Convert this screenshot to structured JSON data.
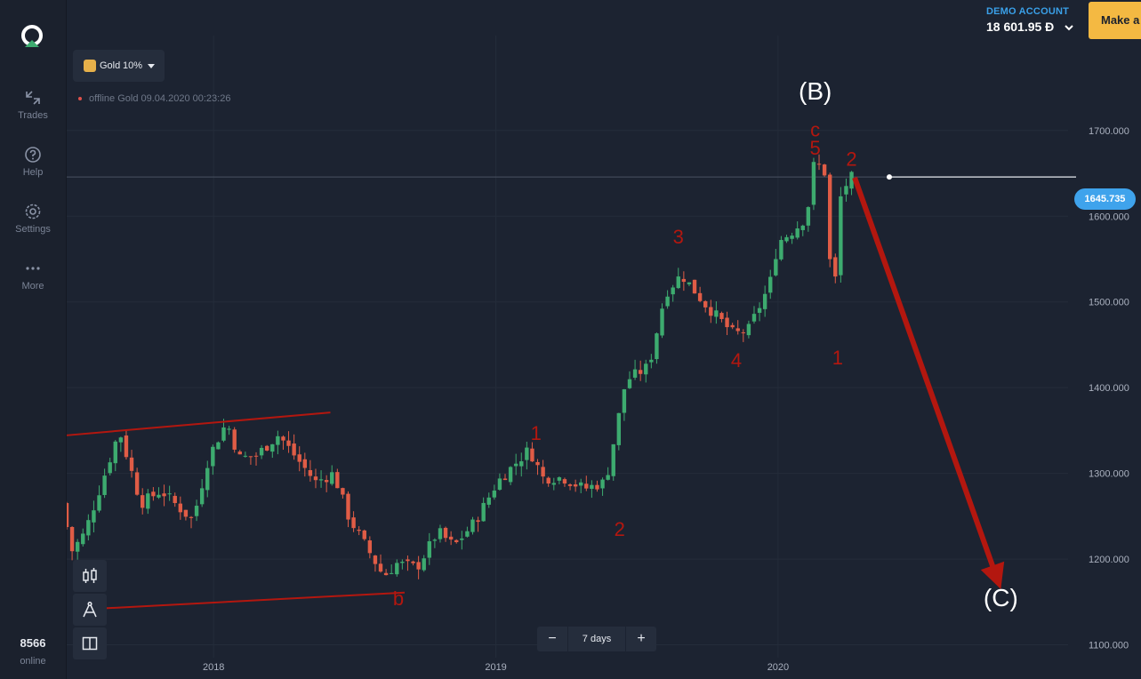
{
  "sidebar": {
    "items": [
      {
        "label": "Trades",
        "icon": "trades-icon"
      },
      {
        "label": "Help",
        "icon": "help-icon"
      },
      {
        "label": "Settings",
        "icon": "settings-icon"
      },
      {
        "label": "More",
        "icon": "more-icon"
      }
    ],
    "online_count": "8566",
    "online_label": "online"
  },
  "account": {
    "type_label": "DEMO ACCOUNT",
    "balance": "18 601.95 Đ",
    "make_button": "Make a"
  },
  "asset": {
    "name": "Gold",
    "percent": "10%",
    "status": "offline Gold  09.04.2020 00:23:26"
  },
  "period": {
    "label": "7 days",
    "minus": "−",
    "plus": "+"
  },
  "current_price": "1645.735",
  "colors": {
    "up": "#3dab6f",
    "down": "#e05c46",
    "annotation": "#b3170f",
    "accent": "#3fa3ec",
    "make_button": "#f4b942"
  },
  "annotations": [
    {
      "text": "(B)",
      "color": "#ffffff",
      "date": "2020-02-18",
      "price": 1736
    },
    {
      "text": "c",
      "color": "#b3170f",
      "date": "2020-02-18",
      "price": 1693
    },
    {
      "text": "5",
      "color": "#b3170f",
      "date": "2020-02-18",
      "price": 1672
    },
    {
      "text": "2",
      "color": "#b3170f",
      "date": "2020-04-05",
      "price": 1659
    },
    {
      "text": "3",
      "color": "#b3170f",
      "date": "2019-08-25",
      "price": 1568
    },
    {
      "text": "4",
      "color": "#b3170f",
      "date": "2019-11-08",
      "price": 1424
    },
    {
      "text": "1",
      "color": "#b3170f",
      "date": "2020-03-18",
      "price": 1427
    },
    {
      "text": "1",
      "color": "#b3170f",
      "date": "2019-02-22",
      "price": 1339
    },
    {
      "text": "2",
      "color": "#b3170f",
      "date": "2019-06-10",
      "price": 1227
    },
    {
      "text": "b",
      "color": "#b3170f",
      "date": "2018-08-28",
      "price": 1146
    },
    {
      "text": "(C)",
      "color": "#ffffff",
      "date": "2020-10-15",
      "price": 1145
    }
  ],
  "chart_data": {
    "type": "candlestick",
    "instrument": "Gold",
    "x_ticks": [
      "2018",
      "2019",
      "2020"
    ],
    "y_ticks": [
      "1100.000",
      "1200.000",
      "1300.000",
      "1400.000",
      "1500.000",
      "1600.000",
      "1700.000"
    ],
    "ylim": [
      1085,
      1790
    ],
    "xlim": [
      "2017-06-25",
      "2021-01-10"
    ],
    "last_price": 1645.735,
    "anchors": [
      [
        "2017-06-25",
        1265
      ],
      [
        "2017-07-09",
        1210
      ],
      [
        "2017-07-25",
        1230
      ],
      [
        "2017-08-15",
        1285
      ],
      [
        "2017-09-08",
        1350
      ],
      [
        "2017-10-06",
        1265
      ],
      [
        "2017-11-01",
        1280
      ],
      [
        "2017-12-12",
        1245
      ],
      [
        "2018-01-02",
        1320
      ],
      [
        "2018-01-25",
        1360
      ],
      [
        "2018-02-10",
        1318
      ],
      [
        "2018-03-03",
        1320
      ],
      [
        "2018-04-02",
        1345
      ],
      [
        "2018-04-25",
        1318
      ],
      [
        "2018-05-20",
        1290
      ],
      [
        "2018-06-12",
        1300
      ],
      [
        "2018-07-02",
        1248
      ],
      [
        "2018-08-16",
        1180
      ],
      [
        "2018-09-02",
        1195
      ],
      [
        "2018-09-28",
        1190
      ],
      [
        "2018-10-25",
        1232
      ],
      [
        "2018-11-15",
        1215
      ],
      [
        "2018-12-13",
        1245
      ],
      [
        "2019-01-10",
        1290
      ],
      [
        "2019-02-20",
        1328
      ],
      [
        "2019-03-10",
        1295
      ],
      [
        "2019-04-05",
        1295
      ],
      [
        "2019-05-02",
        1282
      ],
      [
        "2019-05-30",
        1290
      ],
      [
        "2019-06-25",
        1408
      ],
      [
        "2019-07-25",
        1425
      ],
      [
        "2019-08-15",
        1510
      ],
      [
        "2019-09-05",
        1532
      ],
      [
        "2019-10-05",
        1498
      ],
      [
        "2019-11-12",
        1462
      ],
      [
        "2019-12-01",
        1468
      ],
      [
        "2019-12-28",
        1520
      ],
      [
        "2020-01-08",
        1570
      ],
      [
        "2020-01-30",
        1585
      ],
      [
        "2020-02-14",
        1600
      ],
      [
        "2020-02-24",
        1665
      ],
      [
        "2020-03-09",
        1650
      ],
      [
        "2020-03-19",
        1480
      ],
      [
        "2020-03-28",
        1620
      ],
      [
        "2020-04-09",
        1645
      ]
    ],
    "trend_lines": [
      {
        "from": [
          "2017-06-20",
          1344
        ],
        "to": [
          "2018-06-01",
          1371
        ]
      },
      {
        "from": [
          "2017-08-01",
          1142
        ],
        "to": [
          "2018-09-05",
          1161
        ]
      }
    ],
    "projection": {
      "from": [
        "2020-04-09",
        1645
      ],
      "to": [
        "2020-10-15",
        1165
      ]
    }
  }
}
